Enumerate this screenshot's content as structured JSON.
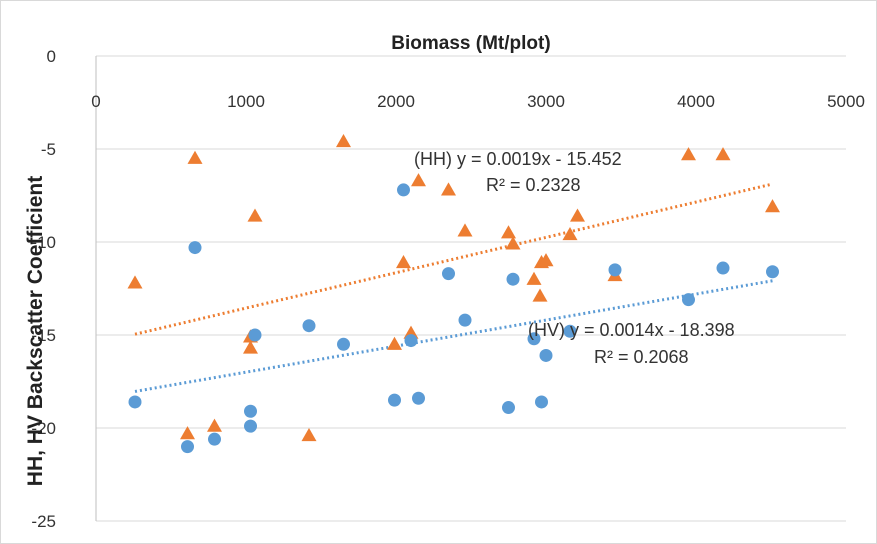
{
  "chart_data": {
    "type": "scatter",
    "title": "",
    "xlabel": "Biomass (Mt/plot)",
    "ylabel": "HH, HV Backscatter Coefficient",
    "xlim": [
      0,
      5000
    ],
    "ylim": [
      -25,
      0
    ],
    "x_ticks": [
      0,
      1000,
      2000,
      3000,
      4000,
      5000
    ],
    "y_ticks": [
      0,
      -5,
      -10,
      -15,
      -20,
      -25
    ],
    "x_axis_position": "top",
    "grid": "horizontal",
    "legend": "none",
    "series": [
      {
        "marker": "triangle",
        "color": "#ed7d31",
        "points": [
          [
            260,
            -12.2
          ],
          [
            610,
            -20.3
          ],
          [
            660,
            -5.5
          ],
          [
            790,
            -19.9
          ],
          [
            1030,
            -15.1
          ],
          [
            1030,
            -15.7
          ],
          [
            1060,
            -8.6
          ],
          [
            1420,
            -20.4
          ],
          [
            1650,
            -4.6
          ],
          [
            1990,
            -15.5
          ],
          [
            2050,
            -11.1
          ],
          [
            2100,
            -14.9
          ],
          [
            2150,
            -6.7
          ],
          [
            2350,
            -7.2
          ],
          [
            2460,
            -9.4
          ],
          [
            2750,
            -9.5
          ],
          [
            2780,
            -10.1
          ],
          [
            2920,
            -12.0
          ],
          [
            2960,
            -12.9
          ],
          [
            2970,
            -11.1
          ],
          [
            3000,
            -11.0
          ],
          [
            3160,
            -9.6
          ],
          [
            3210,
            -8.6
          ],
          [
            3460,
            -11.8
          ],
          [
            3950,
            -5.3
          ],
          [
            4180,
            -5.3
          ],
          [
            4510,
            -8.1
          ]
        ]
      },
      {
        "marker": "circle",
        "color": "#5b9bd5",
        "points": [
          [
            260,
            -18.6
          ],
          [
            610,
            -21.0
          ],
          [
            660,
            -10.3
          ],
          [
            790,
            -20.6
          ],
          [
            1030,
            -19.1
          ],
          [
            1030,
            -19.9
          ],
          [
            1060,
            -15.0
          ],
          [
            1420,
            -14.5
          ],
          [
            1650,
            -15.5
          ],
          [
            1990,
            -18.5
          ],
          [
            2050,
            -7.2
          ],
          [
            2100,
            -15.3
          ],
          [
            2150,
            -18.4
          ],
          [
            2350,
            -11.7
          ],
          [
            2460,
            -14.2
          ],
          [
            2750,
            -18.9
          ],
          [
            2780,
            -12.0
          ],
          [
            2920,
            -15.2
          ],
          [
            2970,
            -18.6
          ],
          [
            3000,
            -16.1
          ],
          [
            3160,
            -14.8
          ],
          [
            3460,
            -11.5
          ],
          [
            3950,
            -13.1
          ],
          [
            4180,
            -11.4
          ],
          [
            4510,
            -11.6
          ]
        ]
      }
    ],
    "trendlines": [
      {
        "style": "dotted",
        "color": "#ed7d31",
        "slope": 0.0019,
        "intercept": -15.452,
        "x_range": [
          260,
          4510
        ],
        "equation": "y = 0.0019x - 15.452",
        "r2": "R² = 0.2328"
      },
      {
        "style": "dotted",
        "color": "#5b9bd5",
        "slope": 0.0014,
        "intercept": -18.398,
        "x_range": [
          260,
          4510
        ],
        "equation": "y = 0.0014x - 18.398",
        "r2": "R² = 0.2068"
      }
    ],
    "annotations": [
      {
        "text": "(HH) y = 0.0019x - 15.452"
      },
      {
        "text": "R² = 0.2328"
      },
      {
        "text": "(HV) y = 0.0014x - 18.398"
      },
      {
        "text": "R² = 0.2068"
      }
    ]
  }
}
